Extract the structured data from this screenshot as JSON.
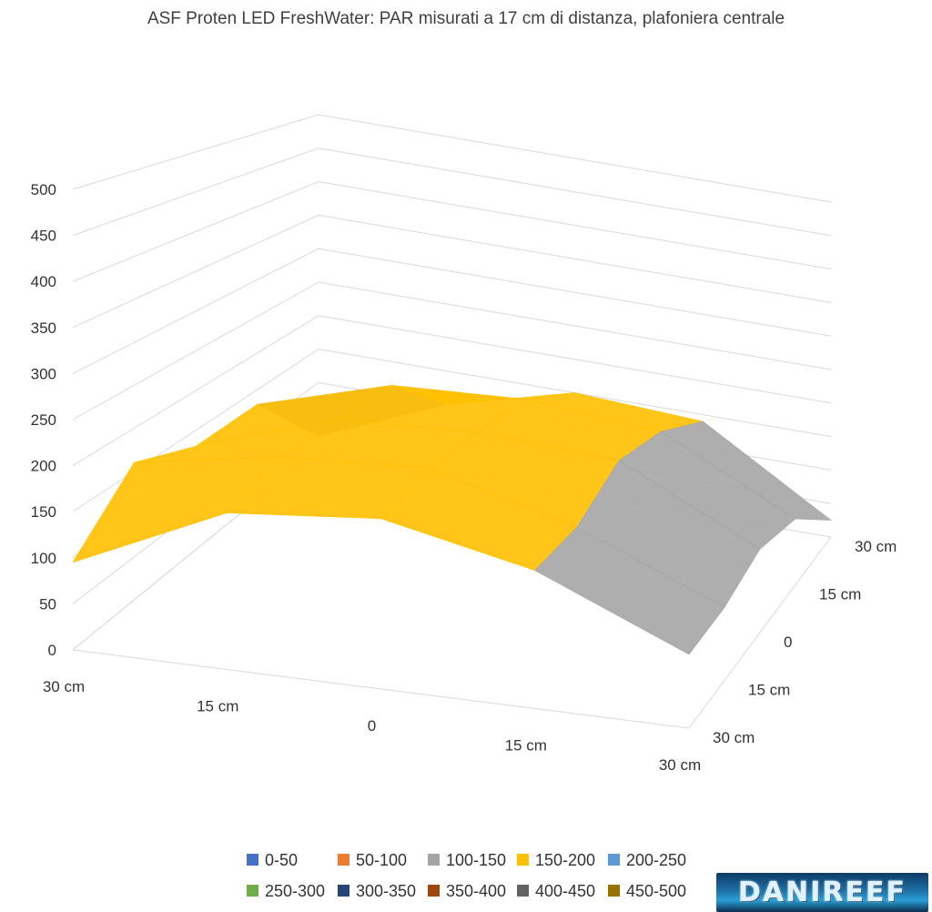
{
  "chart_data": {
    "type": "surface",
    "title": "ASF Proten LED FreshWater: PAR misurati a 17 cm di distanza, plafoniera centrale",
    "z_ticks": [
      "0",
      "50",
      "100",
      "150",
      "200",
      "250",
      "300",
      "350",
      "400",
      "450",
      "500"
    ],
    "zlim": [
      0,
      500
    ],
    "x_ticks": [
      "30 cm",
      "15 cm",
      "0",
      "15 cm",
      "30 cm"
    ],
    "y_ticks": [
      "30 cm",
      "15 cm",
      "0",
      "15 cm",
      "30 cm"
    ],
    "values": [
      [
        95,
        170,
        185,
        150,
        80
      ],
      [
        160,
        190,
        200,
        155,
        85
      ],
      [
        130,
        190,
        200,
        190,
        105
      ],
      [
        130,
        185,
        195,
        180,
        90
      ],
      [
        20,
        100,
        150,
        140,
        25
      ]
    ],
    "bands": [
      {
        "label": "0-50",
        "color": "#4472c4"
      },
      {
        "label": "50-100",
        "color": "#ed7d31"
      },
      {
        "label": "100-150",
        "color": "#a5a5a5"
      },
      {
        "label": "150-200",
        "color": "#ffc000"
      },
      {
        "label": "200-250",
        "color": "#5b9bd5"
      },
      {
        "label": "250-300",
        "color": "#70ad47"
      },
      {
        "label": "300-350",
        "color": "#264478"
      },
      {
        "label": "350-400",
        "color": "#9e480e"
      },
      {
        "label": "400-450",
        "color": "#636363"
      },
      {
        "label": "450-500",
        "color": "#997300"
      }
    ],
    "legend_position": "bottom",
    "grid": true
  },
  "watermark": "DANIREEF"
}
